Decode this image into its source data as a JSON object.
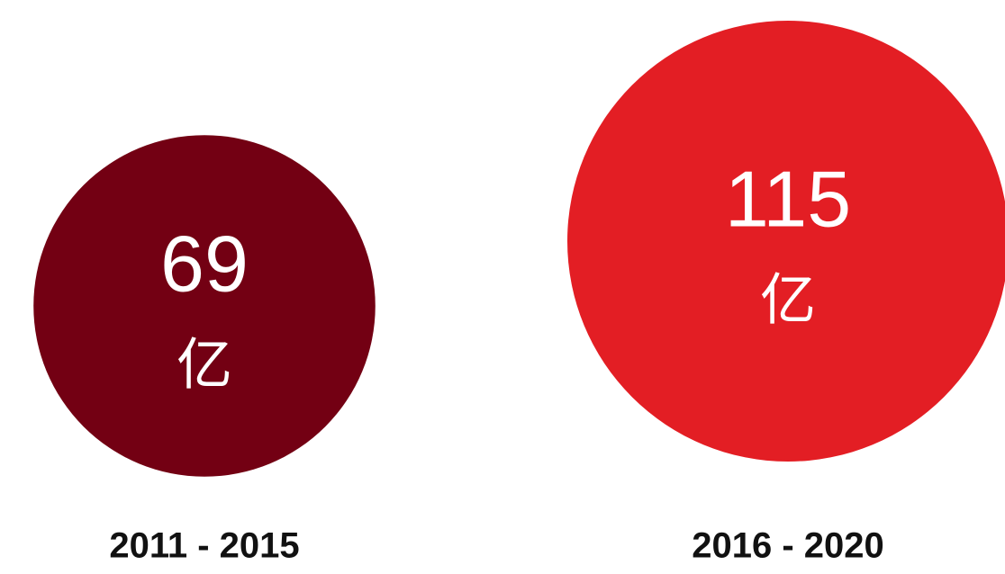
{
  "chart_data": {
    "type": "bubble",
    "categories": [
      "2011 - 2015",
      "2016 - 2020"
    ],
    "values": [
      69,
      115
    ],
    "unit": "亿",
    "colors": [
      "#730013",
      "#e31e24"
    ]
  }
}
